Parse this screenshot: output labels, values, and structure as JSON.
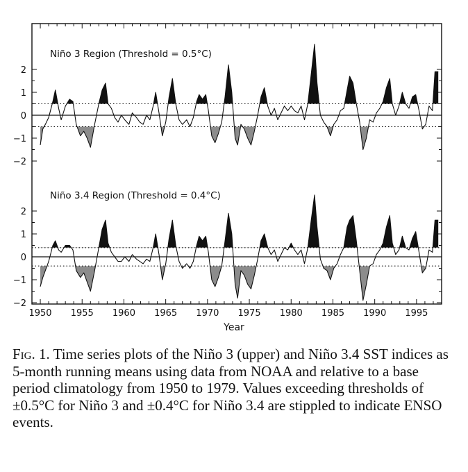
{
  "chart_data": [
    {
      "type": "area",
      "title": "Niño 3 Region (Threshold = 0.5°C)",
      "threshold": 0.5,
      "ylim": [
        -2.5,
        3.0
      ],
      "yticks": [
        "−2",
        "−1",
        "0",
        "1",
        "2"
      ],
      "xlim": [
        1949,
        1998
      ],
      "xticks": [
        "1950",
        "1955",
        "1960",
        "1965",
        "1970",
        "1975",
        "1980",
        "1985",
        "1990",
        "1995"
      ],
      "xlabel": "",
      "series": [
        {
          "x": [
            1950.0,
            1950.3,
            1950.6,
            1951.0,
            1951.5,
            1951.8,
            1952.2,
            1952.5,
            1953.0,
            1953.5,
            1953.9,
            1954.3,
            1954.8,
            1955.2,
            1955.6,
            1956.0,
            1956.5,
            1957.0,
            1957.4,
            1957.8,
            1958.1,
            1958.5,
            1958.9,
            1959.3,
            1959.7,
            1960.1,
            1960.6,
            1961.0,
            1961.5,
            1961.9,
            1962.3,
            1962.7,
            1963.1,
            1963.5,
            1963.8,
            1964.2,
            1964.6,
            1965.0,
            1965.4,
            1965.8,
            1966.2,
            1966.6,
            1967.0,
            1967.5,
            1967.9,
            1968.3,
            1968.7,
            1969.0,
            1969.4,
            1969.8,
            1970.1,
            1970.5,
            1970.9,
            1971.3,
            1971.7,
            1972.1,
            1972.5,
            1972.9,
            1973.3,
            1973.6,
            1974.0,
            1974.4,
            1974.8,
            1975.2,
            1975.6,
            1976.0,
            1976.4,
            1976.8,
            1977.2,
            1977.6,
            1978.0,
            1978.4,
            1978.8,
            1979.2,
            1979.6,
            1980.0,
            1980.4,
            1980.8,
            1981.2,
            1981.6,
            1982.0,
            1982.4,
            1982.8,
            1983.1,
            1983.5,
            1983.9,
            1984.3,
            1984.7,
            1985.1,
            1985.5,
            1985.9,
            1986.3,
            1986.7,
            1987.0,
            1987.4,
            1987.8,
            1988.2,
            1988.6,
            1989.0,
            1989.4,
            1989.8,
            1990.2,
            1990.6,
            1991.0,
            1991.4,
            1991.8,
            1992.1,
            1992.5,
            1992.9,
            1993.3,
            1993.7,
            1994.1,
            1994.5,
            1994.9,
            1995.3,
            1995.7,
            1996.1,
            1996.5,
            1996.9,
            1997.2,
            1997.6
          ],
          "y": [
            -1.3,
            -0.6,
            -0.4,
            -0.1,
            0.6,
            1.1,
            0.3,
            -0.2,
            0.4,
            0.7,
            0.6,
            -0.4,
            -0.9,
            -0.7,
            -1.0,
            -1.4,
            -0.4,
            0.5,
            1.1,
            1.4,
            0.5,
            0.3,
            -0.1,
            -0.3,
            0.0,
            -0.2,
            -0.4,
            0.1,
            -0.1,
            -0.3,
            -0.4,
            0.0,
            -0.2,
            0.4,
            1.0,
            0.1,
            -0.9,
            -0.3,
            0.8,
            1.6,
            0.5,
            -0.2,
            -0.4,
            -0.2,
            -0.5,
            -0.1,
            0.6,
            0.9,
            0.7,
            0.9,
            0.2,
            -0.9,
            -1.2,
            -0.8,
            -0.3,
            0.8,
            2.2,
            1.0,
            -1.0,
            -1.3,
            -0.4,
            -0.6,
            -1.0,
            -1.3,
            -0.7,
            0.0,
            0.8,
            1.2,
            0.4,
            0.0,
            0.3,
            -0.2,
            0.1,
            0.4,
            0.2,
            0.4,
            0.2,
            0.1,
            0.4,
            -0.2,
            0.5,
            1.8,
            3.1,
            1.4,
            0.0,
            -0.3,
            -0.5,
            -0.9,
            -0.4,
            -0.2,
            0.2,
            0.3,
            1.1,
            1.7,
            1.4,
            0.5,
            -0.3,
            -1.5,
            -1.0,
            -0.2,
            -0.3,
            0.1,
            0.3,
            0.6,
            1.2,
            1.6,
            0.5,
            0.0,
            0.4,
            1.0,
            0.5,
            0.3,
            0.8,
            0.9,
            0.2,
            -0.6,
            -0.4,
            0.4,
            0.2,
            1.9,
            1.9
          ]
        }
      ]
    },
    {
      "type": "area",
      "title": "Niño 3.4 Region (Threshold = 0.4°C)",
      "threshold": 0.4,
      "ylim": [
        -2.0,
        2.8
      ],
      "yticks": [
        "−2",
        "−1",
        "0",
        "1",
        "2"
      ],
      "xlim": [
        1949,
        1998
      ],
      "xticks": [
        "1950",
        "1955",
        "1960",
        "1965",
        "1970",
        "1975",
        "1980",
        "1985",
        "1990",
        "1995"
      ],
      "xlabel": "Year",
      "series": [
        {
          "x": [
            1950.0,
            1950.3,
            1950.6,
            1951.0,
            1951.5,
            1951.8,
            1952.2,
            1952.5,
            1953.0,
            1953.5,
            1953.9,
            1954.3,
            1954.8,
            1955.2,
            1955.6,
            1956.0,
            1956.5,
            1957.0,
            1957.4,
            1957.8,
            1958.1,
            1958.5,
            1958.9,
            1959.3,
            1959.7,
            1960.1,
            1960.6,
            1961.0,
            1961.5,
            1961.9,
            1962.3,
            1962.7,
            1963.1,
            1963.5,
            1963.8,
            1964.2,
            1964.6,
            1965.0,
            1965.4,
            1965.8,
            1966.2,
            1966.6,
            1967.0,
            1967.5,
            1967.9,
            1968.3,
            1968.7,
            1969.0,
            1969.4,
            1969.8,
            1970.1,
            1970.5,
            1970.9,
            1971.3,
            1971.7,
            1972.1,
            1972.5,
            1972.9,
            1973.3,
            1973.6,
            1974.0,
            1974.4,
            1974.8,
            1975.2,
            1975.6,
            1976.0,
            1976.4,
            1976.8,
            1977.2,
            1977.6,
            1978.0,
            1978.4,
            1978.8,
            1979.2,
            1979.6,
            1980.0,
            1980.4,
            1980.8,
            1981.2,
            1981.6,
            1982.0,
            1982.4,
            1982.8,
            1983.1,
            1983.5,
            1983.9,
            1984.3,
            1984.7,
            1985.1,
            1985.5,
            1985.9,
            1986.3,
            1986.7,
            1987.0,
            1987.4,
            1987.8,
            1988.2,
            1988.6,
            1989.0,
            1989.4,
            1989.8,
            1990.2,
            1990.6,
            1991.0,
            1991.4,
            1991.8,
            1992.1,
            1992.5,
            1992.9,
            1993.3,
            1993.7,
            1994.1,
            1994.5,
            1994.9,
            1995.3,
            1995.7,
            1996.1,
            1996.5,
            1996.9,
            1997.2,
            1997.6
          ],
          "y": [
            -1.3,
            -0.9,
            -0.6,
            -0.2,
            0.5,
            0.7,
            0.3,
            0.2,
            0.5,
            0.5,
            0.3,
            -0.6,
            -0.9,
            -0.7,
            -1.1,
            -1.5,
            -0.6,
            0.4,
            1.2,
            1.6,
            0.6,
            0.2,
            0.0,
            -0.2,
            -0.2,
            0.0,
            -0.2,
            0.1,
            -0.1,
            -0.2,
            -0.3,
            -0.1,
            -0.2,
            0.4,
            1.0,
            0.1,
            -1.0,
            -0.3,
            0.8,
            1.6,
            0.5,
            -0.2,
            -0.5,
            -0.3,
            -0.5,
            -0.2,
            0.5,
            0.9,
            0.7,
            0.9,
            0.2,
            -1.0,
            -1.3,
            -0.9,
            -0.4,
            0.7,
            1.9,
            1.0,
            -1.2,
            -1.8,
            -0.6,
            -0.8,
            -1.2,
            -1.4,
            -0.8,
            -0.1,
            0.7,
            1.0,
            0.4,
            0.1,
            0.3,
            -0.2,
            0.1,
            0.4,
            0.3,
            0.6,
            0.3,
            0.1,
            0.3,
            -0.3,
            0.4,
            1.6,
            2.7,
            1.3,
            -0.1,
            -0.5,
            -0.6,
            -1.0,
            -0.5,
            -0.3,
            0.1,
            0.4,
            1.3,
            1.6,
            1.8,
            0.7,
            -0.6,
            -1.9,
            -1.2,
            -0.4,
            -0.3,
            0.1,
            0.3,
            0.6,
            1.3,
            1.8,
            0.6,
            0.1,
            0.3,
            0.9,
            0.4,
            0.3,
            0.8,
            1.1,
            0.2,
            -0.7,
            -0.5,
            0.3,
            0.2,
            1.6,
            1.6
          ]
        }
      ]
    }
  ],
  "caption": {
    "label": "Fig. 1.",
    "text": " Time series plots of the Niño 3 (upper) and Niño 3.4 SST indices as 5-month running means using data from NOAA and relative to a base period climatology from 1950 to 1979. Values exceeding thresholds of ±0.5°C for Niño 3 and ±0.4°C for Niño 3.4 are stippled to indicate ENSO events."
  },
  "colors": {
    "positive_fill": "#111111",
    "negative_fill": "#8c8c8c",
    "line": "#111111"
  }
}
